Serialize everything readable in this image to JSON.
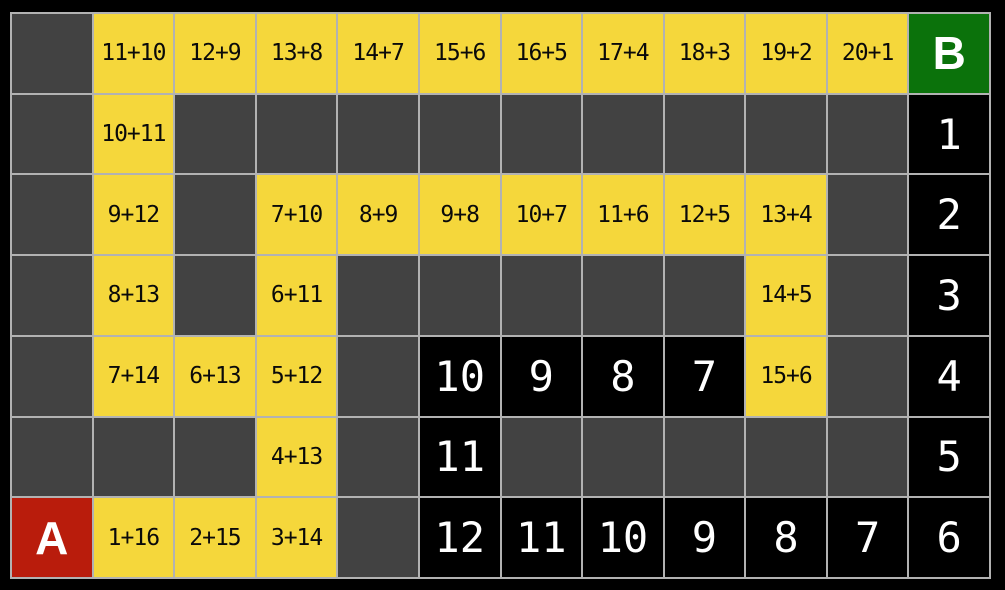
{
  "board": {
    "start_label": "A",
    "goal_label": "B",
    "columns": 12,
    "rows_count": 7
  },
  "colors": {
    "background": "#000000",
    "grid_line": "#b2b2b2",
    "empty_cell": "#424242",
    "path_cell": "#f5d73b",
    "path_text": "#0a0a0a",
    "number_cell": "#000000",
    "number_text": "#ffffff",
    "start_cell": "#b91c0c",
    "goal_cell": "#0b720b"
  },
  "grid": {
    "rows": [
      [
        {
          "t": "",
          "k": "empty"
        },
        {
          "t": "11+10",
          "k": "path"
        },
        {
          "t": "12+9",
          "k": "path"
        },
        {
          "t": "13+8",
          "k": "path"
        },
        {
          "t": "14+7",
          "k": "path"
        },
        {
          "t": "15+6",
          "k": "path"
        },
        {
          "t": "16+5",
          "k": "path"
        },
        {
          "t": "17+4",
          "k": "path"
        },
        {
          "t": "18+3",
          "k": "path"
        },
        {
          "t": "19+2",
          "k": "path"
        },
        {
          "t": "20+1",
          "k": "path"
        },
        {
          "t": "B",
          "k": "goal"
        }
      ],
      [
        {
          "t": "",
          "k": "empty"
        },
        {
          "t": "10+11",
          "k": "path"
        },
        {
          "t": "",
          "k": "empty"
        },
        {
          "t": "",
          "k": "empty"
        },
        {
          "t": "",
          "k": "empty"
        },
        {
          "t": "",
          "k": "empty"
        },
        {
          "t": "",
          "k": "empty"
        },
        {
          "t": "",
          "k": "empty"
        },
        {
          "t": "",
          "k": "empty"
        },
        {
          "t": "",
          "k": "empty"
        },
        {
          "t": "",
          "k": "empty"
        },
        {
          "t": "1",
          "k": "num"
        }
      ],
      [
        {
          "t": "",
          "k": "empty"
        },
        {
          "t": "9+12",
          "k": "path"
        },
        {
          "t": "",
          "k": "empty"
        },
        {
          "t": "7+10",
          "k": "path"
        },
        {
          "t": "8+9",
          "k": "path"
        },
        {
          "t": "9+8",
          "k": "path"
        },
        {
          "t": "10+7",
          "k": "path"
        },
        {
          "t": "11+6",
          "k": "path"
        },
        {
          "t": "12+5",
          "k": "path"
        },
        {
          "t": "13+4",
          "k": "path"
        },
        {
          "t": "",
          "k": "empty"
        },
        {
          "t": "2",
          "k": "num"
        }
      ],
      [
        {
          "t": "",
          "k": "empty"
        },
        {
          "t": "8+13",
          "k": "path"
        },
        {
          "t": "",
          "k": "empty"
        },
        {
          "t": "6+11",
          "k": "path"
        },
        {
          "t": "",
          "k": "empty"
        },
        {
          "t": "",
          "k": "empty"
        },
        {
          "t": "",
          "k": "empty"
        },
        {
          "t": "",
          "k": "empty"
        },
        {
          "t": "",
          "k": "empty"
        },
        {
          "t": "14+5",
          "k": "path"
        },
        {
          "t": "",
          "k": "empty"
        },
        {
          "t": "3",
          "k": "num"
        }
      ],
      [
        {
          "t": "",
          "k": "empty"
        },
        {
          "t": "7+14",
          "k": "path"
        },
        {
          "t": "6+13",
          "k": "path"
        },
        {
          "t": "5+12",
          "k": "path"
        },
        {
          "t": "",
          "k": "empty"
        },
        {
          "t": "10",
          "k": "num"
        },
        {
          "t": "9",
          "k": "num"
        },
        {
          "t": "8",
          "k": "num"
        },
        {
          "t": "7",
          "k": "num"
        },
        {
          "t": "15+6",
          "k": "path"
        },
        {
          "t": "",
          "k": "empty"
        },
        {
          "t": "4",
          "k": "num"
        }
      ],
      [
        {
          "t": "",
          "k": "empty"
        },
        {
          "t": "",
          "k": "empty"
        },
        {
          "t": "",
          "k": "empty"
        },
        {
          "t": "4+13",
          "k": "path"
        },
        {
          "t": "",
          "k": "empty"
        },
        {
          "t": "11",
          "k": "num"
        },
        {
          "t": "",
          "k": "empty"
        },
        {
          "t": "",
          "k": "empty"
        },
        {
          "t": "",
          "k": "empty"
        },
        {
          "t": "",
          "k": "empty"
        },
        {
          "t": "",
          "k": "empty"
        },
        {
          "t": "5",
          "k": "num"
        }
      ],
      [
        {
          "t": "A",
          "k": "start"
        },
        {
          "t": "1+16",
          "k": "path"
        },
        {
          "t": "2+15",
          "k": "path"
        },
        {
          "t": "3+14",
          "k": "path"
        },
        {
          "t": "",
          "k": "empty"
        },
        {
          "t": "12",
          "k": "num"
        },
        {
          "t": "11",
          "k": "num"
        },
        {
          "t": "10",
          "k": "num"
        },
        {
          "t": "9",
          "k": "num"
        },
        {
          "t": "8",
          "k": "num"
        },
        {
          "t": "7",
          "k": "num"
        },
        {
          "t": "6",
          "k": "num"
        }
      ]
    ]
  }
}
